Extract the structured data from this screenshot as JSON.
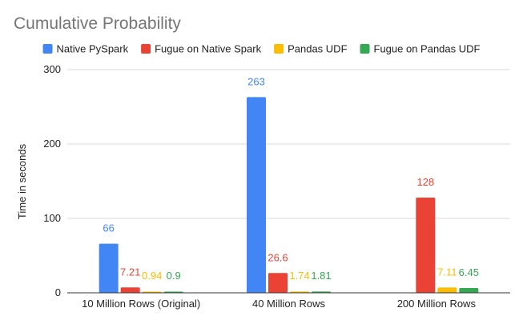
{
  "chart_data": {
    "type": "bar",
    "title": "Cumulative Probability",
    "xlabel": "",
    "ylabel": "Time in seconds",
    "ylim": [
      0,
      300
    ],
    "yticks": [
      0,
      100,
      200,
      300
    ],
    "grid": true,
    "legend_position": "top",
    "categories": [
      "10 Million Rows (Original)",
      "40 Million Rows",
      "200 Million Rows"
    ],
    "series": [
      {
        "name": "Native PySpark",
        "color": "#4285F4",
        "values": [
          66,
          263,
          null
        ],
        "labels": [
          "66",
          "263",
          ""
        ]
      },
      {
        "name": "Fugue on Native Spark",
        "color": "#EA4335",
        "values": [
          7.21,
          26.6,
          128
        ],
        "labels": [
          "7.21",
          "26.6",
          "128"
        ]
      },
      {
        "name": "Pandas UDF",
        "color": "#FBBC04",
        "values": [
          0.94,
          1.74,
          7.11
        ],
        "labels": [
          "0.94",
          "1.74",
          "7.11"
        ]
      },
      {
        "name": "Fugue on Pandas UDF",
        "color": "#34A853",
        "values": [
          0.9,
          1.81,
          6.45
        ],
        "labels": [
          "0.9",
          "1.81",
          "6.45"
        ]
      }
    ]
  }
}
